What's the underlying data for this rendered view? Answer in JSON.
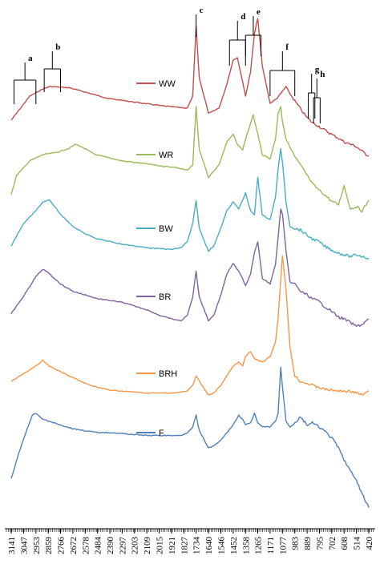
{
  "chart_data": {
    "type": "line",
    "xlim": [
      3141,
      420
    ],
    "x_reversed": true,
    "x_ticks": [
      3141,
      3047,
      2953,
      2859,
      2766,
      2672,
      2578,
      2484,
      2390,
      2297,
      2203,
      2109,
      2015,
      1921,
      1827,
      1734,
      1640,
      1546,
      1452,
      1358,
      1265,
      1171,
      1077,
      983,
      889,
      795,
      702,
      608,
      514,
      420
    ],
    "y_axis": "none",
    "grid": false,
    "legend_placement": "inline",
    "series": [
      {
        "name": "WW",
        "color": "#c0504d",
        "points": [
          [
            3141,
            0.1
          ],
          [
            3000,
            0.3
          ],
          [
            2900,
            0.36
          ],
          [
            2850,
            0.38
          ],
          [
            2700,
            0.37
          ],
          [
            2600,
            0.34
          ],
          [
            2400,
            0.28
          ],
          [
            2200,
            0.25
          ],
          [
            2000,
            0.22
          ],
          [
            1900,
            0.21
          ],
          [
            1800,
            0.2
          ],
          [
            1760,
            0.3
          ],
          [
            1734,
            0.88
          ],
          [
            1710,
            0.45
          ],
          [
            1640,
            0.16
          ],
          [
            1560,
            0.2
          ],
          [
            1500,
            0.4
          ],
          [
            1452,
            0.6
          ],
          [
            1420,
            0.62
          ],
          [
            1380,
            0.42
          ],
          [
            1358,
            0.3
          ],
          [
            1320,
            0.5
          ],
          [
            1290,
            0.82
          ],
          [
            1265,
            0.95
          ],
          [
            1230,
            0.55
          ],
          [
            1171,
            0.24
          ],
          [
            1120,
            0.28
          ],
          [
            1077,
            0.34
          ],
          [
            1050,
            0.38
          ],
          [
            1020,
            0.32
          ],
          [
            983,
            0.26
          ],
          [
            930,
            0.18
          ],
          [
            889,
            0.12
          ],
          [
            850,
            0.08
          ],
          [
            800,
            0.05
          ],
          [
            760,
            0.02
          ],
          [
            700,
            -0.02
          ],
          [
            650,
            -0.05
          ],
          [
            608,
            -0.08
          ],
          [
            560,
            -0.1
          ],
          [
            514,
            -0.12
          ],
          [
            470,
            -0.16
          ],
          [
            420,
            -0.2
          ]
        ]
      },
      {
        "name": "WR",
        "color": "#9bbb59",
        "points": [
          [
            3141,
            0.02
          ],
          [
            3100,
            0.2
          ],
          [
            3000,
            0.34
          ],
          [
            2900,
            0.4
          ],
          [
            2800,
            0.42
          ],
          [
            2700,
            0.46
          ],
          [
            2650,
            0.5
          ],
          [
            2600,
            0.47
          ],
          [
            2500,
            0.4
          ],
          [
            2300,
            0.34
          ],
          [
            2100,
            0.31
          ],
          [
            2000,
            0.29
          ],
          [
            1900,
            0.28
          ],
          [
            1800,
            0.25
          ],
          [
            1760,
            0.3
          ],
          [
            1734,
            0.86
          ],
          [
            1710,
            0.45
          ],
          [
            1640,
            0.18
          ],
          [
            1560,
            0.3
          ],
          [
            1500,
            0.52
          ],
          [
            1452,
            0.6
          ],
          [
            1420,
            0.5
          ],
          [
            1380,
            0.44
          ],
          [
            1358,
            0.55
          ],
          [
            1300,
            0.78
          ],
          [
            1265,
            0.6
          ],
          [
            1230,
            0.4
          ],
          [
            1171,
            0.36
          ],
          [
            1130,
            0.55
          ],
          [
            1110,
            0.8
          ],
          [
            1090,
            0.86
          ],
          [
            1077,
            0.72
          ],
          [
            1050,
            0.55
          ],
          [
            983,
            0.38
          ],
          [
            940,
            0.3
          ],
          [
            889,
            0.2
          ],
          [
            850,
            0.12
          ],
          [
            800,
            0.06
          ],
          [
            760,
            0.02
          ],
          [
            700,
            -0.05
          ],
          [
            650,
            -0.08
          ],
          [
            608,
            0.1
          ],
          [
            560,
            -0.12
          ],
          [
            514,
            -0.1
          ],
          [
            470,
            -0.14
          ],
          [
            420,
            -0.04
          ]
        ]
      },
      {
        "name": "BW",
        "color": "#4bacc6",
        "points": [
          [
            3141,
            0.1
          ],
          [
            3050,
            0.35
          ],
          [
            2953,
            0.5
          ],
          [
            2900,
            0.6
          ],
          [
            2850,
            0.62
          ],
          [
            2766,
            0.46
          ],
          [
            2672,
            0.32
          ],
          [
            2578,
            0.24
          ],
          [
            2484,
            0.18
          ],
          [
            2390,
            0.15
          ],
          [
            2297,
            0.12
          ],
          [
            2203,
            0.1
          ],
          [
            2109,
            0.08
          ],
          [
            2015,
            0.07
          ],
          [
            1921,
            0.06
          ],
          [
            1850,
            0.08
          ],
          [
            1800,
            0.15
          ],
          [
            1760,
            0.35
          ],
          [
            1734,
            0.62
          ],
          [
            1710,
            0.3
          ],
          [
            1640,
            0.04
          ],
          [
            1600,
            0.1
          ],
          [
            1546,
            0.3
          ],
          [
            1500,
            0.5
          ],
          [
            1452,
            0.6
          ],
          [
            1410,
            0.52
          ],
          [
            1380,
            0.62
          ],
          [
            1358,
            0.7
          ],
          [
            1320,
            0.5
          ],
          [
            1290,
            0.45
          ],
          [
            1265,
            0.88
          ],
          [
            1230,
            0.45
          ],
          [
            1171,
            0.4
          ],
          [
            1130,
            0.65
          ],
          [
            1110,
            0.98
          ],
          [
            1090,
            1.2
          ],
          [
            1077,
            1.05
          ],
          [
            1050,
            0.6
          ],
          [
            1020,
            0.32
          ],
          [
            983,
            0.3
          ],
          [
            940,
            0.28
          ],
          [
            889,
            0.22
          ],
          [
            850,
            0.18
          ],
          [
            800,
            0.15
          ],
          [
            760,
            0.1
          ],
          [
            700,
            0.05
          ],
          [
            650,
            0.02
          ],
          [
            608,
            0.0
          ],
          [
            560,
            -0.02
          ],
          [
            514,
            0.0
          ],
          [
            470,
            -0.02
          ],
          [
            420,
            -0.04
          ]
        ]
      },
      {
        "name": "BR",
        "color": "#8064a2",
        "points": [
          [
            3141,
            0.12
          ],
          [
            3050,
            0.3
          ],
          [
            2953,
            0.52
          ],
          [
            2900,
            0.6
          ],
          [
            2859,
            0.56
          ],
          [
            2766,
            0.44
          ],
          [
            2672,
            0.36
          ],
          [
            2578,
            0.32
          ],
          [
            2484,
            0.28
          ],
          [
            2390,
            0.26
          ],
          [
            2297,
            0.24
          ],
          [
            2203,
            0.2
          ],
          [
            2109,
            0.16
          ],
          [
            2015,
            0.1
          ],
          [
            1921,
            0.06
          ],
          [
            1850,
            0.04
          ],
          [
            1800,
            0.1
          ],
          [
            1760,
            0.3
          ],
          [
            1734,
            0.58
          ],
          [
            1710,
            0.3
          ],
          [
            1640,
            0.04
          ],
          [
            1600,
            0.1
          ],
          [
            1546,
            0.32
          ],
          [
            1500,
            0.55
          ],
          [
            1452,
            0.66
          ],
          [
            1410,
            0.58
          ],
          [
            1380,
            0.5
          ],
          [
            1358,
            0.42
          ],
          [
            1320,
            0.55
          ],
          [
            1290,
            0.78
          ],
          [
            1265,
            0.9
          ],
          [
            1230,
            0.5
          ],
          [
            1171,
            0.44
          ],
          [
            1130,
            0.65
          ],
          [
            1110,
            0.95
          ],
          [
            1090,
            1.25
          ],
          [
            1077,
            1.2
          ],
          [
            1050,
            0.8
          ],
          [
            1020,
            0.46
          ],
          [
            983,
            0.44
          ],
          [
            940,
            0.36
          ],
          [
            889,
            0.32
          ],
          [
            850,
            0.28
          ],
          [
            800,
            0.25
          ],
          [
            760,
            0.2
          ],
          [
            700,
            0.14
          ],
          [
            650,
            0.08
          ],
          [
            608,
            0.06
          ],
          [
            560,
            0.02
          ],
          [
            514,
            -0.02
          ],
          [
            470,
            0.0
          ],
          [
            420,
            0.06
          ]
        ]
      },
      {
        "name": "BRH",
        "color": "#f79646",
        "points": [
          [
            3141,
            0.14
          ],
          [
            3050,
            0.22
          ],
          [
            2953,
            0.3
          ],
          [
            2900,
            0.36
          ],
          [
            2850,
            0.3
          ],
          [
            2766,
            0.24
          ],
          [
            2672,
            0.18
          ],
          [
            2578,
            0.12
          ],
          [
            2484,
            0.08
          ],
          [
            2390,
            0.05
          ],
          [
            2297,
            0.04
          ],
          [
            2203,
            0.03
          ],
          [
            2109,
            0.02
          ],
          [
            2015,
            0.02
          ],
          [
            1921,
            0.02
          ],
          [
            1850,
            0.03
          ],
          [
            1800,
            0.04
          ],
          [
            1760,
            0.1
          ],
          [
            1734,
            0.2
          ],
          [
            1700,
            0.12
          ],
          [
            1640,
            0.0
          ],
          [
            1600,
            0.02
          ],
          [
            1546,
            0.1
          ],
          [
            1500,
            0.2
          ],
          [
            1452,
            0.3
          ],
          [
            1410,
            0.34
          ],
          [
            1380,
            0.3
          ],
          [
            1358,
            0.4
          ],
          [
            1320,
            0.45
          ],
          [
            1290,
            0.38
          ],
          [
            1265,
            0.36
          ],
          [
            1230,
            0.34
          ],
          [
            1171,
            0.4
          ],
          [
            1130,
            0.55
          ],
          [
            1110,
            0.8
          ],
          [
            1090,
            1.2
          ],
          [
            1077,
            1.45
          ],
          [
            1050,
            1.1
          ],
          [
            1020,
            0.5
          ],
          [
            983,
            0.2
          ],
          [
            940,
            0.14
          ],
          [
            889,
            0.12
          ],
          [
            850,
            0.1
          ],
          [
            800,
            0.08
          ],
          [
            760,
            0.06
          ],
          [
            700,
            0.05
          ],
          [
            650,
            0.04
          ],
          [
            608,
            0.04
          ],
          [
            560,
            0.04
          ],
          [
            514,
            0.02
          ],
          [
            470,
            0.0
          ],
          [
            420,
            0.04
          ]
        ]
      },
      {
        "name": "F",
        "color": "#4f81bd",
        "points": [
          [
            3141,
            0.02
          ],
          [
            3080,
            0.3
          ],
          [
            3020,
            0.54
          ],
          [
            2980,
            0.68
          ],
          [
            2953,
            0.7
          ],
          [
            2900,
            0.64
          ],
          [
            2859,
            0.62
          ],
          [
            2766,
            0.58
          ],
          [
            2672,
            0.54
          ],
          [
            2578,
            0.52
          ],
          [
            2484,
            0.5
          ],
          [
            2390,
            0.5
          ],
          [
            2297,
            0.49
          ],
          [
            2203,
            0.48
          ],
          [
            2109,
            0.47
          ],
          [
            2015,
            0.47
          ],
          [
            1921,
            0.47
          ],
          [
            1850,
            0.47
          ],
          [
            1800,
            0.5
          ],
          [
            1760,
            0.56
          ],
          [
            1734,
            0.68
          ],
          [
            1710,
            0.52
          ],
          [
            1640,
            0.34
          ],
          [
            1600,
            0.36
          ],
          [
            1546,
            0.42
          ],
          [
            1500,
            0.5
          ],
          [
            1452,
            0.58
          ],
          [
            1410,
            0.68
          ],
          [
            1380,
            0.64
          ],
          [
            1358,
            0.58
          ],
          [
            1320,
            0.6
          ],
          [
            1290,
            0.7
          ],
          [
            1265,
            0.6
          ],
          [
            1230,
            0.56
          ],
          [
            1171,
            0.56
          ],
          [
            1130,
            0.62
          ],
          [
            1110,
            0.7
          ],
          [
            1090,
            1.18
          ],
          [
            1077,
            0.98
          ],
          [
            1050,
            0.62
          ],
          [
            1020,
            0.56
          ],
          [
            983,
            0.6
          ],
          [
            940,
            0.66
          ],
          [
            889,
            0.58
          ],
          [
            850,
            0.6
          ],
          [
            800,
            0.56
          ],
          [
            760,
            0.52
          ],
          [
            700,
            0.44
          ],
          [
            650,
            0.34
          ],
          [
            608,
            0.22
          ],
          [
            560,
            0.1
          ],
          [
            514,
            0.0
          ],
          [
            470,
            -0.14
          ],
          [
            420,
            -0.28
          ]
        ]
      }
    ],
    "peak_labels": [
      {
        "text": "a",
        "x1": 3120,
        "x2": 2953
      },
      {
        "text": "b",
        "x1": 2890,
        "x2": 2766
      },
      {
        "text": "c",
        "x1": 1734,
        "x2": 1734
      },
      {
        "text": "d",
        "x1": 1480,
        "x2": 1358
      },
      {
        "text": "e",
        "x1": 1358,
        "x2": 1240
      },
      {
        "text": "f",
        "x1": 1171,
        "x2": 983
      },
      {
        "text": "g",
        "x1": 880,
        "x2": 830
      },
      {
        "text": "h",
        "x1": 840,
        "x2": 790
      }
    ]
  }
}
